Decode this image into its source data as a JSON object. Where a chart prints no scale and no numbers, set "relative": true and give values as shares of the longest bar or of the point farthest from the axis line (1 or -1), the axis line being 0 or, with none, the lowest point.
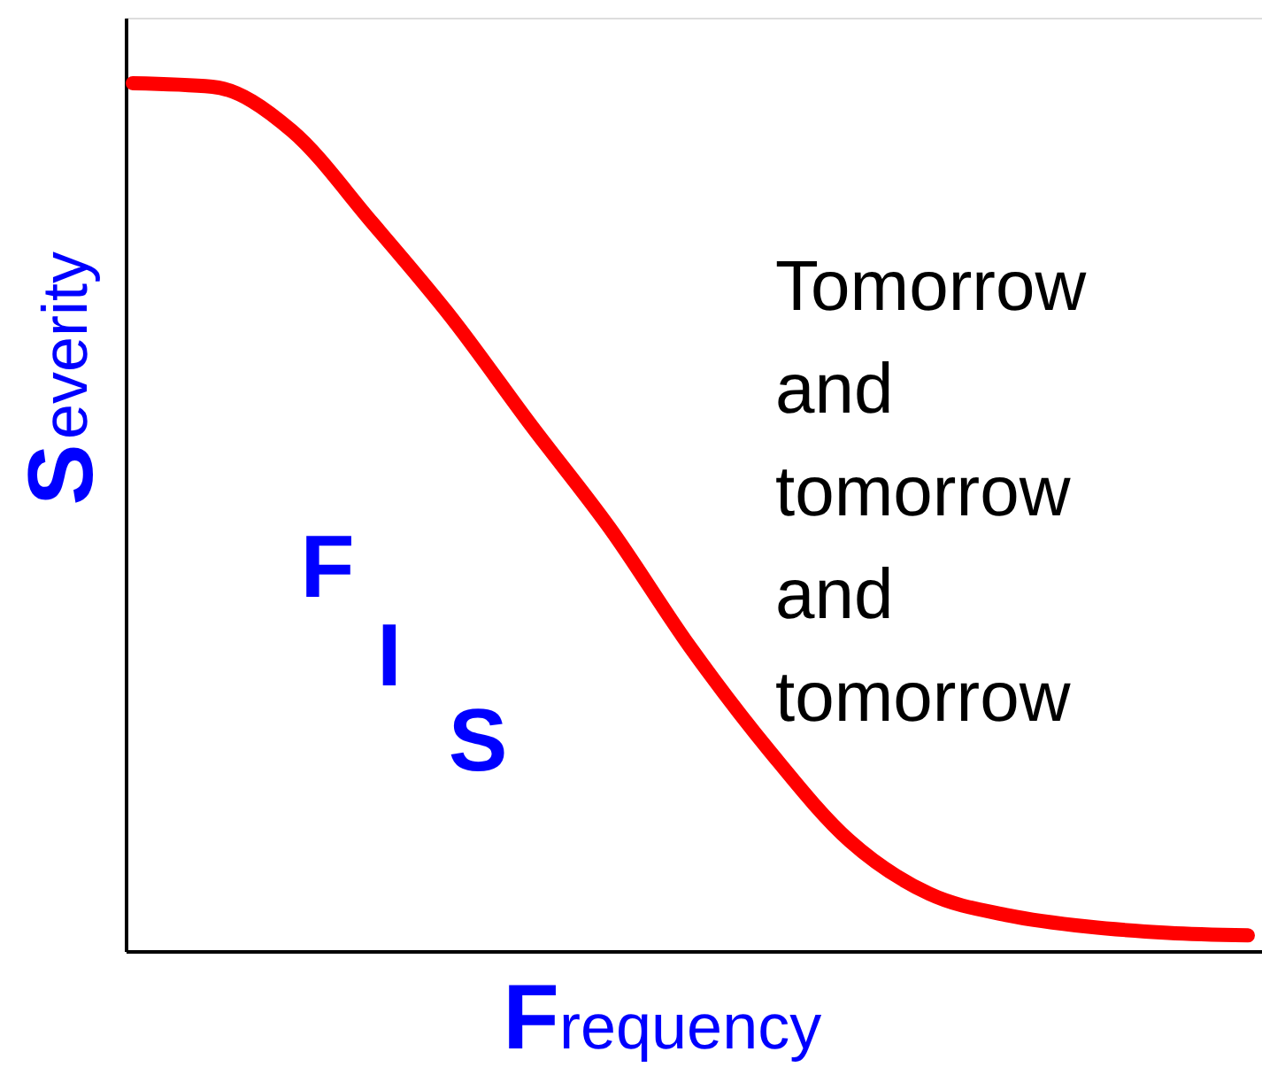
{
  "chart_data": {
    "type": "line",
    "xlabel": "Frequency",
    "ylabel": "Severity",
    "relative": true,
    "categories": [
      null,
      null,
      null,
      null,
      null,
      null,
      null,
      null,
      null,
      null,
      null,
      null,
      null,
      null,
      null
    ],
    "series": [
      {
        "color": "#ff0000",
        "values": [
          1.0,
          0.996,
          0.945,
          0.84,
          0.73,
          0.606,
          0.486,
          0.35,
          0.23,
          0.127,
          0.066,
          0.041,
          0.028,
          0.021,
          0.018
        ]
      }
    ],
    "annotations": [
      "F",
      "I",
      "S",
      "Tomorrow and tomorrow and tomorrow"
    ]
  }
}
